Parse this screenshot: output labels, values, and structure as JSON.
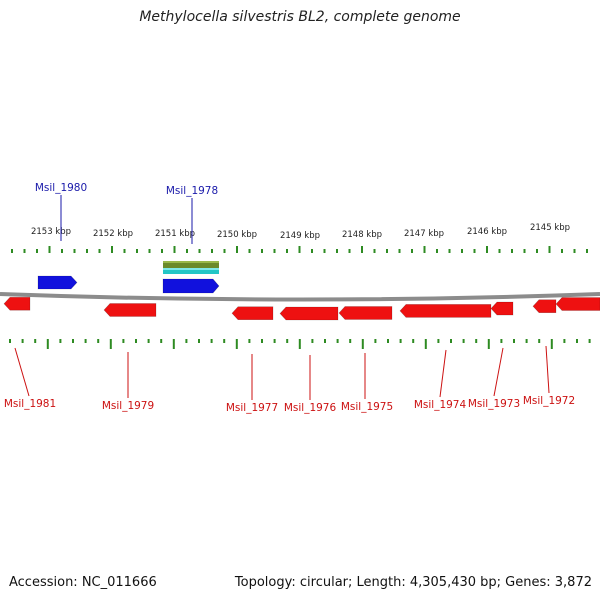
{
  "title": "Methylocella silvestris BL2, complete genome",
  "accession": "Accession: NC_011666",
  "summary": "Topology: circular; Length: 4,305,430 bp; Genes: 3,872",
  "colors": {
    "backbone": "#8c8c8c",
    "tick": "#2e8b22",
    "forward_gene": "#1111dd",
    "reverse_gene": "#ee1111",
    "forward_label": "#1a1aaa",
    "reverse_label": "#cc1111",
    "feature_top": "#6b8a2a",
    "feature_bottom": "#22c6c6"
  },
  "scale_labels": [
    "2153 kbp",
    "2152 kbp",
    "2151 kbp",
    "2150 kbp",
    "2149 kbp",
    "2148 kbp",
    "2147 kbp",
    "2146 kbp",
    "2145 kbp"
  ],
  "forward_genes": [
    "Msil_1980",
    "Msil_1978"
  ],
  "reverse_genes": [
    "Msil_1981",
    "Msil_1979",
    "Msil_1977",
    "Msil_1976",
    "Msil_1975",
    "Msil_1974",
    "Msil_1973",
    "Msil_1972"
  ]
}
